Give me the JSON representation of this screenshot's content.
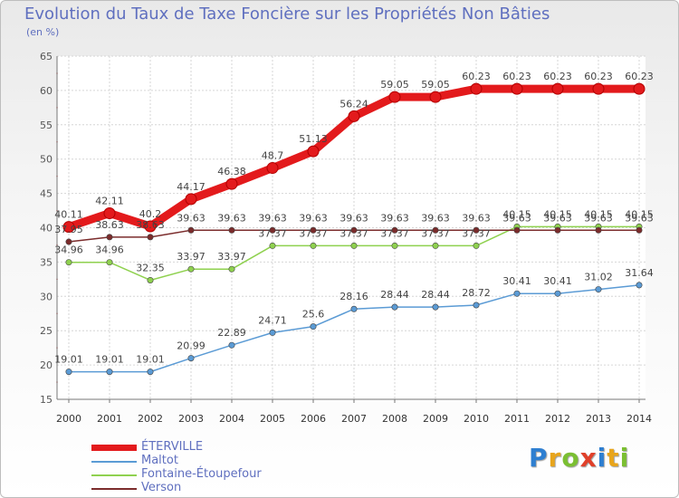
{
  "chart_data": {
    "type": "line",
    "title": "Evolution du Taux de Taxe Foncière sur les Propriétés Non Bâties",
    "subtitle": "(en %)",
    "xlabel": "",
    "ylabel": "",
    "ylim": [
      15,
      65
    ],
    "yticks": [
      15,
      20,
      25,
      30,
      35,
      40,
      45,
      50,
      55,
      60,
      65
    ],
    "categories": [
      "2000",
      "2001",
      "2002",
      "2003",
      "2004",
      "2005",
      "2006",
      "2007",
      "2008",
      "2009",
      "2010",
      "2011",
      "2012",
      "2013",
      "2014"
    ],
    "series": [
      {
        "name": "ÉTERVILLE",
        "color": "#e31a1c",
        "values": [
          40.11,
          42.11,
          40.2,
          44.17,
          46.38,
          48.7,
          51.13,
          56.24,
          59.05,
          59.05,
          60.23,
          60.23,
          60.23,
          60.23,
          60.23
        ],
        "labels": [
          "40.11",
          "42.11",
          "40.2",
          "44.17",
          "46.38",
          "48.7",
          "51.13",
          "56.24",
          "59.05",
          "59.05",
          "60.23",
          "60.23",
          "60.23",
          "60.23",
          "60.23"
        ]
      },
      {
        "name": "Maltot",
        "color": "#5b9bd5",
        "values": [
          19.01,
          19.01,
          19.01,
          20.99,
          22.89,
          24.71,
          25.6,
          28.16,
          28.44,
          28.44,
          28.72,
          30.41,
          30.41,
          31.02,
          31.64
        ],
        "labels": [
          "19.01",
          "19.01",
          "19.01",
          "20.99",
          "22.89",
          "24.71",
          "25.6",
          "28.16",
          "28.44",
          "28.44",
          "28.72",
          "30.41",
          "30.41",
          "31.02",
          "31.64"
        ]
      },
      {
        "name": "Fontaine-Étoupefour",
        "color": "#8fd14f",
        "values": [
          34.96,
          34.96,
          32.35,
          33.97,
          33.97,
          37.37,
          37.37,
          37.37,
          37.37,
          37.37,
          37.37,
          40.15,
          40.15,
          40.15,
          40.15
        ],
        "labels": [
          "34.96",
          "34.96",
          "32.35",
          "33.97",
          "33.97",
          "37.37",
          "37.37",
          "37.37",
          "37.37",
          "37.37",
          "37.37",
          "40.15",
          "40.15",
          "40.15",
          "40.15"
        ]
      },
      {
        "name": "Verson",
        "color": "#7b2c2c",
        "values": [
          37.95,
          38.63,
          38.63,
          39.63,
          39.63,
          39.63,
          39.63,
          39.63,
          39.63,
          39.63,
          39.63,
          39.63,
          39.63,
          39.63,
          39.63
        ],
        "labels": [
          "37.95",
          "38.63",
          "38.63",
          "39.63",
          "39.63",
          "39.63",
          "39.63",
          "39.63",
          "39.63",
          "39.63",
          "39.63",
          "39.63",
          "39.63",
          "39.63",
          "39.63"
        ]
      }
    ]
  },
  "brand": {
    "letters": [
      "P",
      "r",
      "o",
      "x",
      "i",
      "t",
      "i"
    ]
  }
}
